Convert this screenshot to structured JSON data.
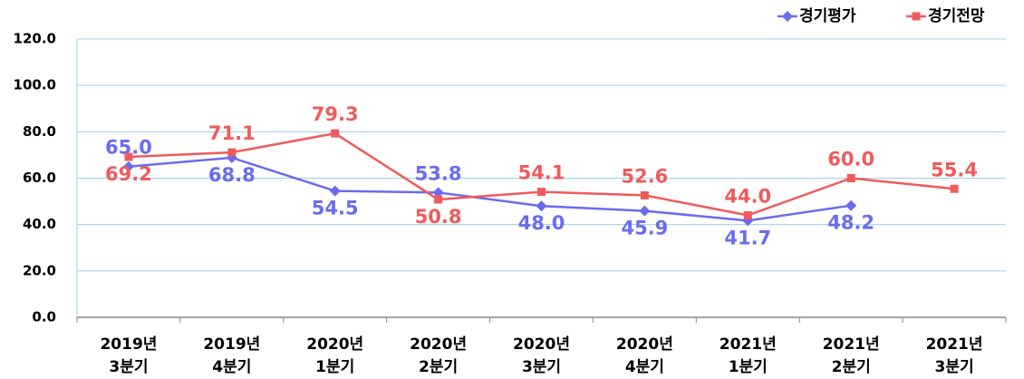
{
  "chart_data": {
    "type": "line",
    "categories": [
      [
        "2019년",
        "3분기"
      ],
      [
        "2019년",
        "4분기"
      ],
      [
        "2020년",
        "1분기"
      ],
      [
        "2020년",
        "2분기"
      ],
      [
        "2020년",
        "3분기"
      ],
      [
        "2020년",
        "4분기"
      ],
      [
        "2021년",
        "1분기"
      ],
      [
        "2021년",
        "2분기"
      ],
      [
        "2021년",
        "3분기"
      ]
    ],
    "series": [
      {
        "name": "경기평가",
        "color": "#6b6bef",
        "marker": "diamond",
        "values": [
          65.0,
          68.8,
          54.5,
          53.8,
          48.0,
          45.9,
          41.7,
          48.2,
          null
        ],
        "value_labels": [
          "65.0",
          "68.8",
          "54.5",
          "53.8",
          "48.0",
          "45.9",
          "41.7",
          "48.2",
          null
        ]
      },
      {
        "name": "경기전망",
        "color": "#ef5b5b",
        "marker": "square",
        "values": [
          69.2,
          71.1,
          79.3,
          50.8,
          54.1,
          52.6,
          44.0,
          60.0,
          55.4
        ],
        "value_labels": [
          "69.2",
          "71.1",
          "79.3",
          "50.8",
          "54.1",
          "52.6",
          "44.0",
          "60.0",
          "55.4"
        ]
      }
    ],
    "ylim": [
      0,
      120
    ],
    "yticks": [
      {
        "value": 0,
        "label": "0.0"
      },
      {
        "value": 20,
        "label": "20.0"
      },
      {
        "value": 40,
        "label": "40.0"
      },
      {
        "value": 60,
        "label": "60.0"
      },
      {
        "value": 80,
        "label": "80.0"
      },
      {
        "value": 100,
        "label": "100.0"
      },
      {
        "value": 120,
        "label": "120.0"
      }
    ],
    "grid": true,
    "legend": "top-right"
  }
}
